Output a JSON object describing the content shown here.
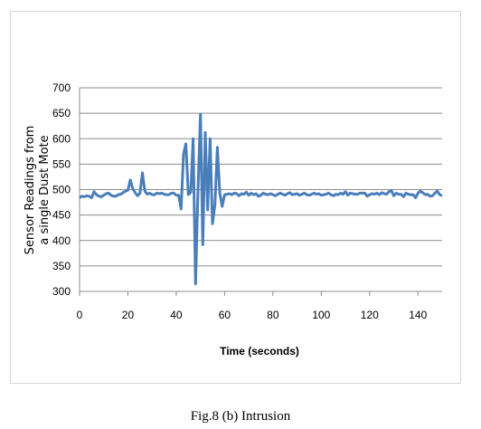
{
  "caption": "Fig.8 (b) Intrusion",
  "chart_data": {
    "type": "line",
    "title": "",
    "xlabel": "Time (seconds)",
    "ylabel_lines": [
      "Sensor Readings from",
      "a single Dust Mote"
    ],
    "xlim": [
      0,
      150
    ],
    "ylim": [
      300,
      700
    ],
    "x_ticks": [
      0,
      20,
      40,
      60,
      80,
      100,
      120,
      140
    ],
    "y_ticks": [
      300,
      350,
      400,
      450,
      500,
      550,
      600,
      650,
      700
    ],
    "grid": "horizontal",
    "line_color": "#4a7ebb",
    "series": [
      {
        "x": [
          0,
          1,
          2,
          3,
          4,
          5,
          6,
          7,
          8,
          9,
          10,
          11,
          12,
          13,
          14,
          15,
          16,
          17,
          18,
          19,
          20,
          21,
          22,
          23,
          24,
          25,
          26,
          27,
          28,
          29,
          30,
          31,
          32,
          33,
          34,
          35,
          36,
          37,
          38,
          39,
          40,
          41,
          42,
          43,
          44,
          45,
          46,
          47,
          48,
          49,
          50,
          51,
          52,
          53,
          54,
          55,
          56,
          57,
          58,
          59,
          60,
          61,
          62,
          63,
          64,
          65,
          66,
          67,
          68,
          69,
          70,
          71,
          72,
          73,
          74,
          75,
          76,
          77,
          78,
          79,
          80,
          81,
          82,
          83,
          84,
          85,
          86,
          87,
          88,
          89,
          90,
          91,
          92,
          93,
          94,
          95,
          96,
          97,
          98,
          99,
          100,
          101,
          102,
          103,
          104,
          105,
          106,
          107,
          108,
          109,
          110,
          111,
          112,
          113,
          114,
          115,
          116,
          117,
          118,
          119,
          120,
          121,
          122,
          123,
          124,
          125,
          126,
          127,
          128,
          129,
          130,
          131,
          132,
          133,
          134,
          135,
          136,
          137,
          138,
          139,
          140,
          141,
          142,
          143,
          144,
          145,
          146,
          147,
          148,
          149,
          150
        ],
        "values": [
          484,
          487,
          486,
          488,
          487,
          484,
          496,
          490,
          487,
          486,
          489,
          492,
          493,
          489,
          487,
          487,
          490,
          491,
          494,
          497,
          499,
          519,
          502,
          494,
          488,
          493,
          533,
          497,
          491,
          493,
          490,
          490,
          493,
          492,
          493,
          491,
          490,
          490,
          493,
          493,
          489,
          489,
          462,
          570,
          590,
          490,
          495,
          600,
          315,
          500,
          648,
          392,
          612,
          460,
          600,
          433,
          470,
          583,
          493,
          467,
          490,
          491,
          492,
          490,
          493,
          492,
          488,
          492,
          491,
          495,
          489,
          493,
          490,
          492,
          487,
          489,
          493,
          491,
          490,
          492,
          490,
          488,
          491,
          493,
          491,
          489,
          492,
          494,
          490,
          491,
          492,
          489,
          491,
          493,
          490,
          489,
          491,
          493,
          491,
          492,
          489,
          490,
          491,
          493,
          490,
          488,
          491,
          490,
          493,
          491,
          496,
          489,
          493,
          492,
          491,
          491,
          493,
          493,
          493,
          487,
          490,
          492,
          491,
          493,
          490,
          494,
          492,
          491,
          496,
          498,
          488,
          493,
          491,
          491,
          486,
          493,
          491,
          490,
          490,
          484,
          493,
          497,
          494,
          490,
          491,
          487,
          488,
          493,
          497,
          490,
          488
        ]
      }
    ]
  }
}
